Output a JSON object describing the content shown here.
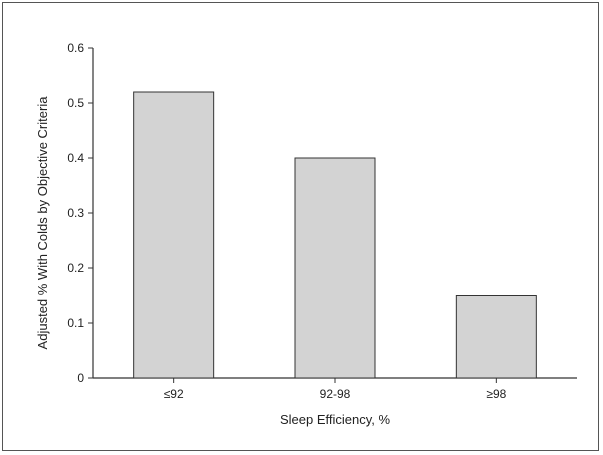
{
  "chart_data": {
    "type": "bar",
    "categories": [
      "≤92",
      "92-98",
      "≥98"
    ],
    "values": [
      0.52,
      0.4,
      0.15
    ],
    "title": "",
    "xlabel": "Sleep Efficiency, %",
    "ylabel": "Adjusted % With Colds by Objective Criteria",
    "ylim": [
      0,
      0.6
    ],
    "yticks": [
      "0",
      "0.1",
      "0.2",
      "0.3",
      "0.4",
      "0.5",
      "0.6"
    ],
    "grid": false,
    "legend": "none",
    "bar_color": "#d3d3d3",
    "bar_edge_color": "#333333"
  }
}
